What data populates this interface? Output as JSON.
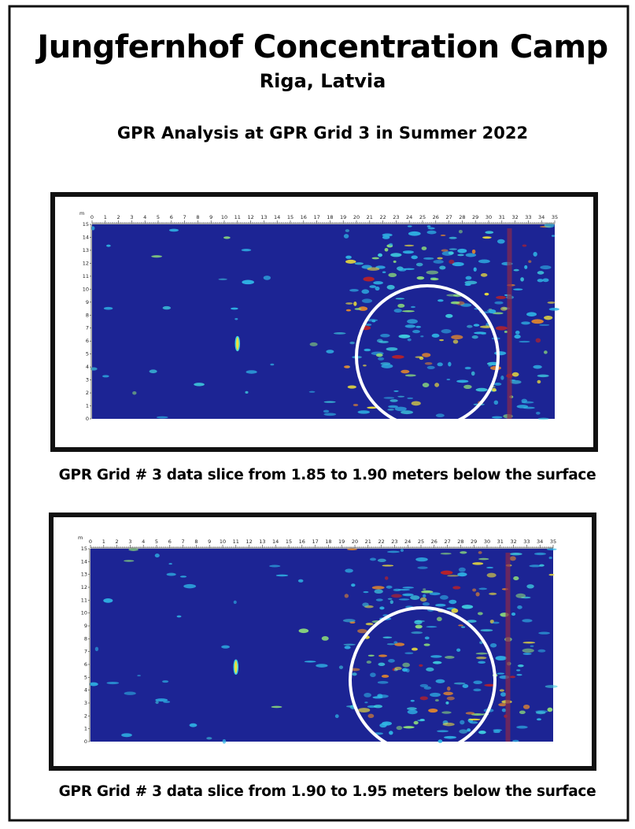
{
  "header": {
    "title": "Jungfernhof Concentration Camp",
    "location": "Riga, Latvia",
    "subtitle": "GPR Analysis at GPR Grid 3 in Summer 2022"
  },
  "panels": [
    {
      "axis_unit": "m",
      "x_ticks": [
        0,
        1,
        2,
        3,
        4,
        5,
        6,
        7,
        8,
        9,
        10,
        11,
        12,
        13,
        14,
        15,
        16,
        17,
        18,
        19,
        20,
        21,
        22,
        23,
        24,
        25,
        26,
        27,
        28,
        29,
        30,
        31,
        32,
        33,
        34,
        35
      ],
      "y_ticks": [
        0,
        1,
        2,
        3,
        4,
        5,
        6,
        7,
        8,
        9,
        10,
        11,
        12,
        13,
        14,
        15
      ],
      "caption": "GPR Grid # 3 data slice from 1.85 to 1.90 meters below the surface"
    },
    {
      "axis_unit": "m",
      "x_ticks": [
        0,
        1,
        2,
        3,
        4,
        5,
        6,
        7,
        8,
        9,
        10,
        11,
        12,
        13,
        14,
        15,
        16,
        17,
        18,
        19,
        20,
        21,
        22,
        23,
        24,
        25,
        26,
        27,
        28,
        29,
        30,
        31,
        32,
        33,
        34,
        35
      ],
      "y_ticks": [
        0,
        1,
        2,
        3,
        4,
        5,
        6,
        7,
        8,
        9,
        10,
        11,
        12,
        13,
        14,
        15
      ],
      "caption": "GPR Grid # 3 data slice from 1.90 to 1.95 meters below the surface"
    }
  ]
}
